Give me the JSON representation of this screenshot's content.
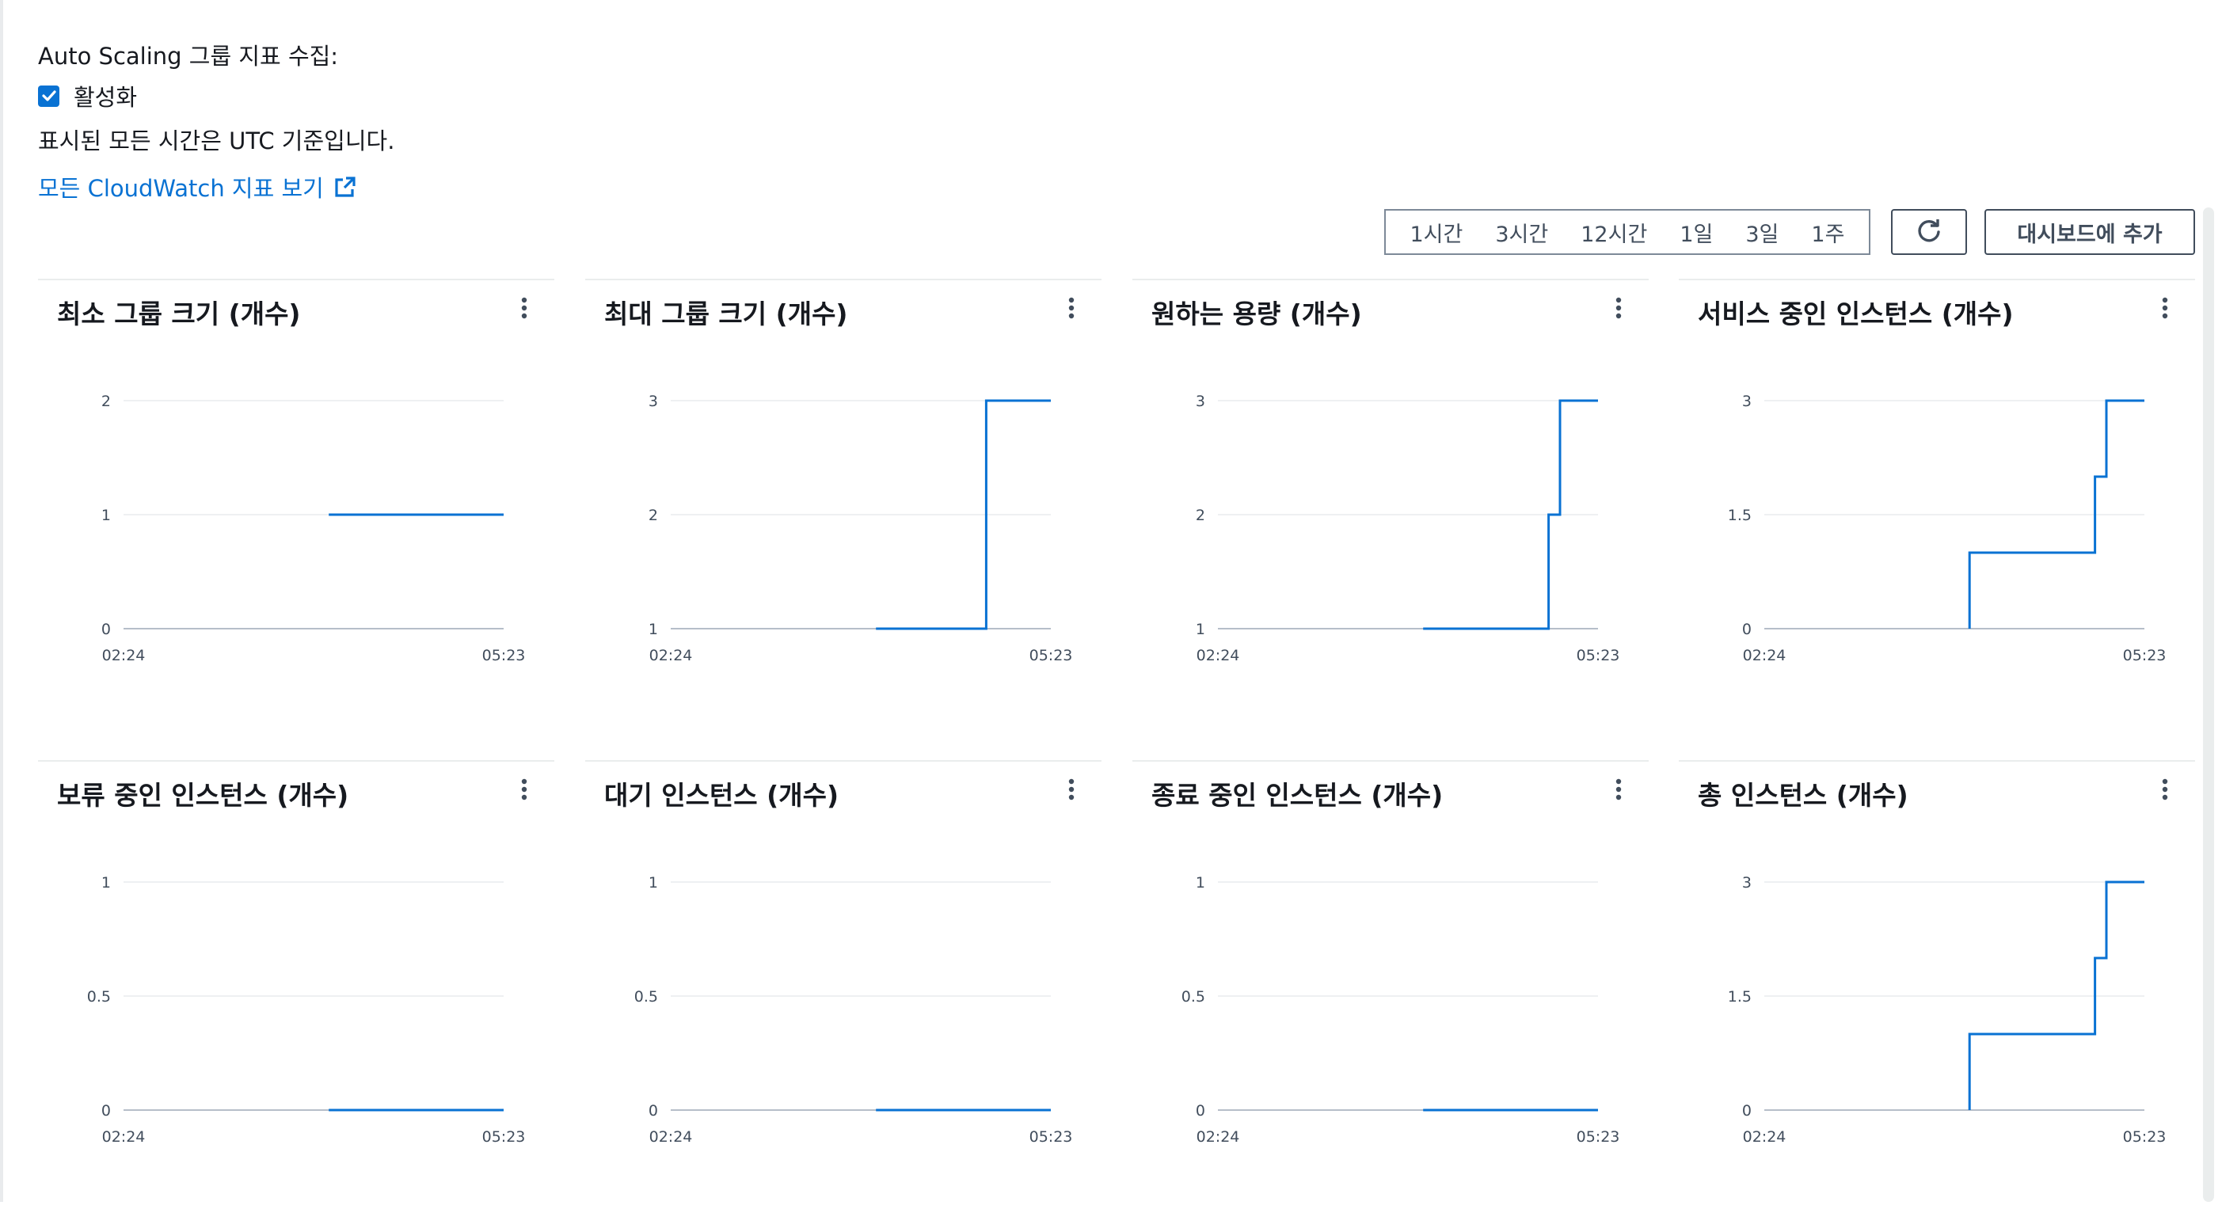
{
  "header": {
    "collect_label": "Auto Scaling 그룹 지표 수집:",
    "enabled_label": "활성화",
    "enabled_checked": true,
    "timezone_note": "표시된 모든 시간은 UTC 기준입니다.",
    "cloudwatch_link": "모든 CloudWatch 지표 보기"
  },
  "toolbar": {
    "ranges": [
      "1시간",
      "3시간",
      "12시간",
      "1일",
      "3일",
      "1주"
    ],
    "add_to_dashboard": "대시보드에 추가"
  },
  "colors": {
    "line": "#0972d3",
    "link": "#0972d3",
    "check": "#0972d3",
    "grid": "#e9ebed",
    "axis": "#b6bec9"
  },
  "icons": {
    "refresh": "refresh-icon",
    "external": "external-link-icon",
    "menu": "kebab-menu-icon",
    "check": "checkmark-icon"
  },
  "chart_data": [
    {
      "type": "line",
      "title": "최소 그룹 크기 (개수)",
      "yticks": [
        "0",
        "1",
        "2"
      ],
      "ylim": [
        0,
        2
      ],
      "xticks": [
        "02:24",
        "05:23"
      ],
      "xlim": [
        0,
        1
      ],
      "series": [
        {
          "x": [
            0.54,
            1.0
          ],
          "y": [
            1,
            1
          ]
        }
      ]
    },
    {
      "type": "line",
      "title": "최대 그룹 크기 (개수)",
      "yticks": [
        "1",
        "2",
        "3"
      ],
      "ylim": [
        1,
        3
      ],
      "xticks": [
        "02:24",
        "05:23"
      ],
      "xlim": [
        0,
        1
      ],
      "series": [
        {
          "x": [
            0.54,
            0.83,
            0.83,
            1.0
          ],
          "y": [
            1,
            1,
            3,
            3
          ]
        }
      ]
    },
    {
      "type": "line",
      "title": "원하는 용량 (개수)",
      "yticks": [
        "1",
        "2",
        "3"
      ],
      "ylim": [
        1,
        3
      ],
      "xticks": [
        "02:24",
        "05:23"
      ],
      "xlim": [
        0,
        1
      ],
      "series": [
        {
          "x": [
            0.54,
            0.87,
            0.87,
            0.9,
            0.9,
            1.0
          ],
          "y": [
            1,
            1,
            2,
            2,
            3,
            3
          ]
        }
      ]
    },
    {
      "type": "line",
      "title": "서비스 중인 인스턴스 (개수)",
      "yticks": [
        "0",
        "1.5",
        "3"
      ],
      "ylim": [
        0,
        3
      ],
      "xticks": [
        "02:24",
        "05:23"
      ],
      "xlim": [
        0,
        1
      ],
      "series": [
        {
          "x": [
            0.54,
            0.54,
            0.87,
            0.87,
            0.9,
            0.9,
            1.0
          ],
          "y": [
            0,
            1,
            1,
            2,
            2,
            3,
            3
          ]
        }
      ]
    },
    {
      "type": "line",
      "title": "보류 중인 인스턴스 (개수)",
      "yticks": [
        "0",
        "0.5",
        "1"
      ],
      "ylim": [
        0,
        1
      ],
      "xticks": [
        "02:24",
        "05:23"
      ],
      "xlim": [
        0,
        1
      ],
      "series": [
        {
          "x": [
            0.54,
            1.0
          ],
          "y": [
            0,
            0
          ]
        }
      ]
    },
    {
      "type": "line",
      "title": "대기 인스턴스 (개수)",
      "yticks": [
        "0",
        "0.5",
        "1"
      ],
      "ylim": [
        0,
        1
      ],
      "xticks": [
        "02:24",
        "05:23"
      ],
      "xlim": [
        0,
        1
      ],
      "series": [
        {
          "x": [
            0.54,
            1.0
          ],
          "y": [
            0,
            0
          ]
        }
      ]
    },
    {
      "type": "line",
      "title": "종료 중인 인스턴스 (개수)",
      "yticks": [
        "0",
        "0.5",
        "1"
      ],
      "ylim": [
        0,
        1
      ],
      "xticks": [
        "02:24",
        "05:23"
      ],
      "xlim": [
        0,
        1
      ],
      "series": [
        {
          "x": [
            0.54,
            1.0
          ],
          "y": [
            0,
            0
          ]
        }
      ]
    },
    {
      "type": "line",
      "title": "총 인스턴스 (개수)",
      "yticks": [
        "0",
        "1.5",
        "3"
      ],
      "ylim": [
        0,
        3
      ],
      "xticks": [
        "02:24",
        "05:23"
      ],
      "xlim": [
        0,
        1
      ],
      "series": [
        {
          "x": [
            0.54,
            0.54,
            0.87,
            0.87,
            0.9,
            0.9,
            1.0
          ],
          "y": [
            0,
            1,
            1,
            2,
            2,
            3,
            3
          ]
        }
      ]
    }
  ]
}
